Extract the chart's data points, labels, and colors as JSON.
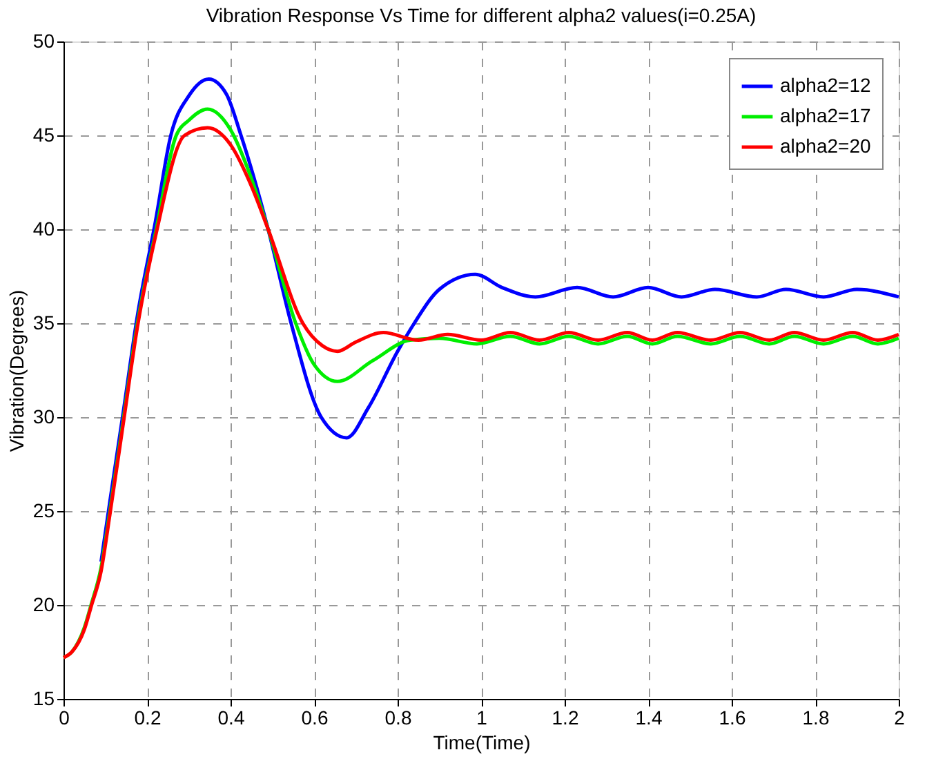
{
  "chart_data": {
    "type": "line",
    "title": "Vibration Response Vs Time for different alpha2 values(i=0.25A)",
    "xlabel": "Time(Time)",
    "ylabel": "Vibration(Degrees)",
    "xlim": [
      0,
      2
    ],
    "xticks": [
      0,
      0.2,
      0.4,
      0.6,
      0.8,
      1,
      1.2,
      1.4,
      1.6,
      1.8,
      2
    ],
    "ylim": [
      15,
      50
    ],
    "yticks": [
      15,
      20,
      25,
      30,
      35,
      40,
      45,
      50
    ],
    "grid": true,
    "legend": "top right",
    "line_style": "solid",
    "marker": "none",
    "series": [
      {
        "name": "alpha2=12",
        "color": "#0000ff",
        "x": [
          0.09,
          0.111,
          0.144,
          0.177,
          0.22,
          0.257,
          0.3,
          0.348,
          0.39,
          0.425,
          0.49,
          0.545,
          0.617,
          0.678,
          0.73,
          0.8,
          0.84,
          0.9,
          0.986,
          1.05,
          1.13,
          1.23,
          1.316,
          1.4,
          1.48,
          1.56,
          1.66,
          1.73,
          1.82,
          1.9,
          2
        ],
        "values": [
          22.3,
          25.5,
          30.4,
          35.4,
          40.4,
          45,
          47.1,
          48,
          47.2,
          45,
          40,
          35,
          30,
          28.9,
          30.5,
          33.5,
          35,
          36.8,
          37.6,
          36.9,
          36.4,
          36.9,
          36.4,
          36.9,
          36.4,
          36.8,
          36.4,
          36.8,
          36.4,
          36.8,
          36.4
        ]
      },
      {
        "name": "alpha2=17",
        "color": "#00ee00",
        "x": [
          0,
          0.02,
          0.05,
          0.066,
          0.09,
          0.111,
          0.144,
          0.177,
          0.222,
          0.27,
          0.3,
          0.345,
          0.4,
          0.45,
          0.49,
          0.556,
          0.6,
          0.656,
          0.74,
          0.83,
          0.9,
          0.99,
          1.07,
          1.14,
          1.21,
          1.28,
          1.35,
          1.41,
          1.47,
          1.55,
          1.62,
          1.69,
          1.75,
          1.82,
          1.89,
          1.95,
          2
        ],
        "values": [
          17.2,
          17.5,
          18.8,
          20,
          22,
          25,
          30,
          35,
          40,
          45,
          45.8,
          46.4,
          45.3,
          42.7,
          40,
          35,
          32.8,
          31.9,
          33,
          34.1,
          34.2,
          33.9,
          34.3,
          33.9,
          34.3,
          33.9,
          34.3,
          33.9,
          34.3,
          33.9,
          34.3,
          33.9,
          34.3,
          33.9,
          34.3,
          33.9,
          34.2
        ]
      },
      {
        "name": "alpha2=20",
        "color": "#ff0000",
        "x": [
          0,
          0.02,
          0.05,
          0.066,
          0.09,
          0.111,
          0.144,
          0.177,
          0.222,
          0.29,
          0.345,
          0.4,
          0.45,
          0.49,
          0.573,
          0.62,
          0.656,
          0.7,
          0.766,
          0.85,
          0.92,
          1,
          1.07,
          1.14,
          1.21,
          1.28,
          1.35,
          1.41,
          1.47,
          1.55,
          1.62,
          1.69,
          1.75,
          1.82,
          1.89,
          1.95,
          2
        ],
        "values": [
          17.2,
          17.5,
          18.7,
          19.9,
          21.8,
          24.8,
          29.8,
          34.8,
          39.8,
          45,
          45.4,
          44.5,
          42.3,
          40,
          35,
          33.8,
          33.5,
          34,
          34.5,
          34.1,
          34.4,
          34.1,
          34.5,
          34.1,
          34.5,
          34.1,
          34.5,
          34.1,
          34.5,
          34.1,
          34.5,
          34.1,
          34.5,
          34.1,
          34.5,
          34.1,
          34.4
        ]
      }
    ]
  }
}
